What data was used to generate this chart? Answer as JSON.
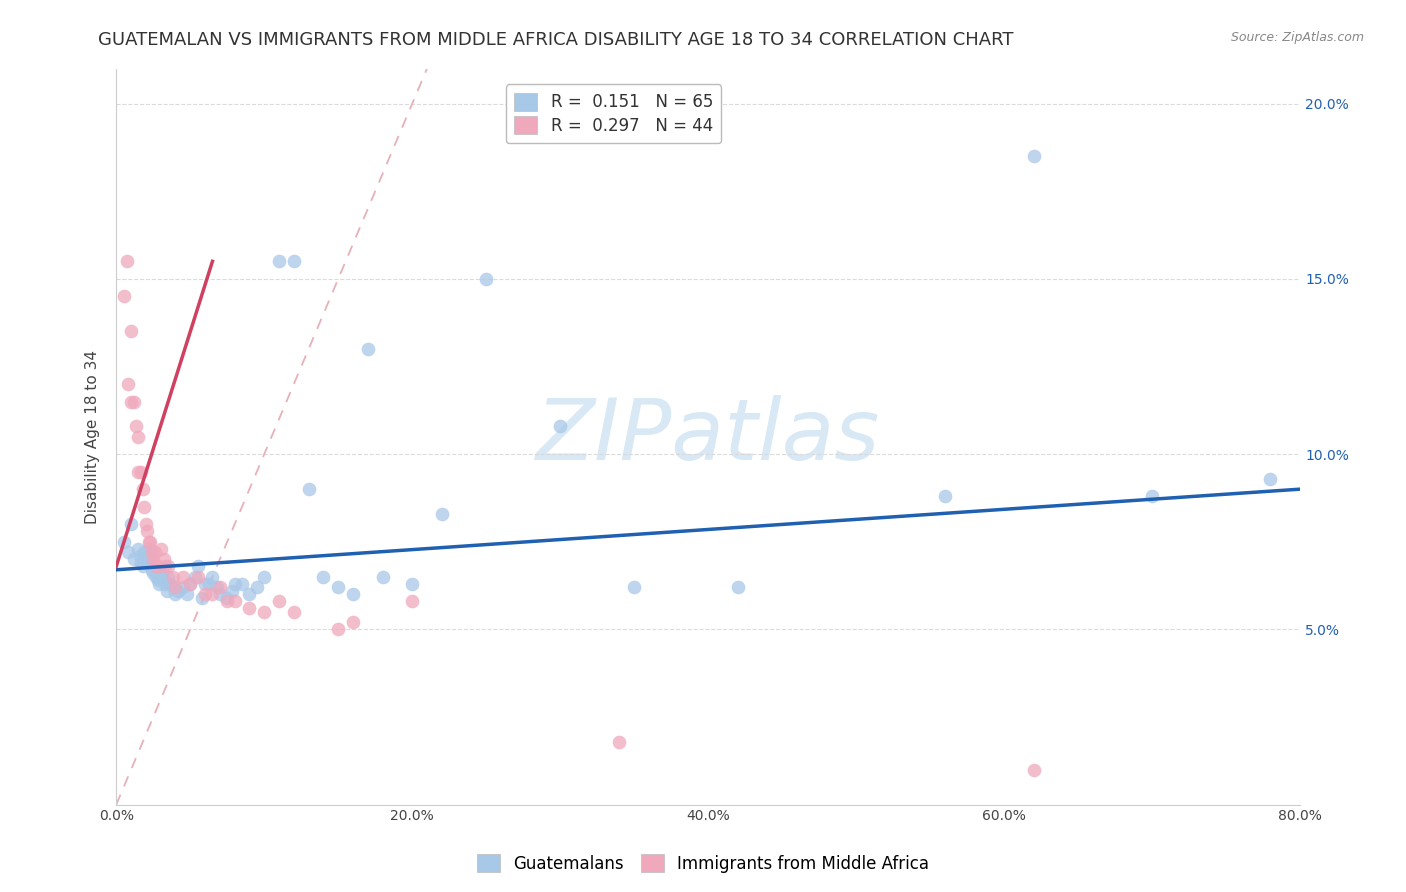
{
  "title": "GUATEMALAN VS IMMIGRANTS FROM MIDDLE AFRICA DISABILITY AGE 18 TO 34 CORRELATION CHART",
  "source": "Source: ZipAtlas.com",
  "ylabel": "Disability Age 18 to 34",
  "xlim": [
    0.0,
    0.8
  ],
  "ylim": [
    0.0,
    0.21
  ],
  "xticks": [
    0.0,
    0.2,
    0.4,
    0.6,
    0.8
  ],
  "xticklabels": [
    "0.0%",
    "20.0%",
    "40.0%",
    "60.0%",
    "80.0%"
  ],
  "yticks": [
    0.0,
    0.05,
    0.1,
    0.15,
    0.2
  ],
  "yticklabels": [
    "",
    "5.0%",
    "10.0%",
    "15.0%",
    "20.0%"
  ],
  "blue_R": 0.151,
  "blue_N": 65,
  "pink_R": 0.297,
  "pink_N": 44,
  "blue_color": "#A8C8E8",
  "pink_color": "#F0A8BC",
  "blue_line_color": "#2060B0",
  "pink_line_color": "#D04060",
  "ref_line_color": "#E8B0B8",
  "background_color": "#FFFFFF",
  "grid_color": "#D8D8D8",
  "blue_scatter_x": [
    0.005,
    0.008,
    0.01,
    0.012,
    0.015,
    0.016,
    0.017,
    0.018,
    0.019,
    0.02,
    0.021,
    0.022,
    0.023,
    0.024,
    0.025,
    0.026,
    0.027,
    0.028,
    0.029,
    0.03,
    0.031,
    0.032,
    0.033,
    0.034,
    0.035,
    0.036,
    0.038,
    0.04,
    0.042,
    0.045,
    0.048,
    0.05,
    0.053,
    0.055,
    0.058,
    0.06,
    0.063,
    0.065,
    0.068,
    0.07,
    0.075,
    0.078,
    0.08,
    0.085,
    0.09,
    0.095,
    0.1,
    0.11,
    0.12,
    0.13,
    0.14,
    0.15,
    0.16,
    0.17,
    0.18,
    0.2,
    0.22,
    0.25,
    0.3,
    0.35,
    0.42,
    0.56,
    0.62,
    0.7,
    0.78
  ],
  "blue_scatter_y": [
    0.075,
    0.072,
    0.08,
    0.07,
    0.073,
    0.071,
    0.069,
    0.068,
    0.072,
    0.071,
    0.069,
    0.073,
    0.07,
    0.067,
    0.066,
    0.068,
    0.065,
    0.064,
    0.063,
    0.067,
    0.066,
    0.064,
    0.063,
    0.061,
    0.065,
    0.063,
    0.062,
    0.06,
    0.061,
    0.062,
    0.06,
    0.063,
    0.065,
    0.068,
    0.059,
    0.063,
    0.063,
    0.065,
    0.062,
    0.06,
    0.059,
    0.061,
    0.063,
    0.063,
    0.06,
    0.062,
    0.065,
    0.155,
    0.155,
    0.09,
    0.065,
    0.062,
    0.06,
    0.13,
    0.065,
    0.063,
    0.083,
    0.15,
    0.108,
    0.062,
    0.062,
    0.088,
    0.185,
    0.088,
    0.093
  ],
  "pink_scatter_x": [
    0.005,
    0.007,
    0.008,
    0.01,
    0.01,
    0.012,
    0.013,
    0.015,
    0.015,
    0.017,
    0.018,
    0.019,
    0.02,
    0.021,
    0.022,
    0.023,
    0.024,
    0.025,
    0.026,
    0.027,
    0.028,
    0.03,
    0.032,
    0.033,
    0.035,
    0.038,
    0.04,
    0.045,
    0.05,
    0.055,
    0.06,
    0.065,
    0.07,
    0.075,
    0.08,
    0.09,
    0.1,
    0.11,
    0.12,
    0.15,
    0.16,
    0.2,
    0.34,
    0.62
  ],
  "pink_scatter_y": [
    0.145,
    0.155,
    0.12,
    0.115,
    0.135,
    0.115,
    0.108,
    0.105,
    0.095,
    0.095,
    0.09,
    0.085,
    0.08,
    0.078,
    0.075,
    0.075,
    0.072,
    0.07,
    0.072,
    0.068,
    0.068,
    0.073,
    0.07,
    0.068,
    0.068,
    0.065,
    0.062,
    0.065,
    0.063,
    0.065,
    0.06,
    0.06,
    0.062,
    0.058,
    0.058,
    0.056,
    0.055,
    0.058,
    0.055,
    0.05,
    0.052,
    0.058,
    0.018,
    0.01
  ],
  "blue_line_x0": 0.0,
  "blue_line_y0": 0.067,
  "blue_line_x1": 0.8,
  "blue_line_y1": 0.09,
  "pink_line_x0": 0.0,
  "pink_line_y0": 0.068,
  "pink_line_x1": 0.065,
  "pink_line_y1": 0.155,
  "ref_line_x0": 0.0,
  "ref_line_y0": 0.0,
  "ref_line_x1": 0.21,
  "ref_line_y1": 0.21,
  "marker_size": 90,
  "title_fontsize": 13,
  "axis_fontsize": 11,
  "tick_fontsize": 10,
  "legend_fontsize": 12,
  "watermark_text": "ZIPatlas",
  "watermark_color": "#D8E8F4",
  "legend_label_blue": "R =  0.151   N = 65",
  "legend_label_pink": "R =  0.297   N = 44",
  "series1_label": "Guatemalans",
  "series2_label": "Immigrants from Middle Africa"
}
